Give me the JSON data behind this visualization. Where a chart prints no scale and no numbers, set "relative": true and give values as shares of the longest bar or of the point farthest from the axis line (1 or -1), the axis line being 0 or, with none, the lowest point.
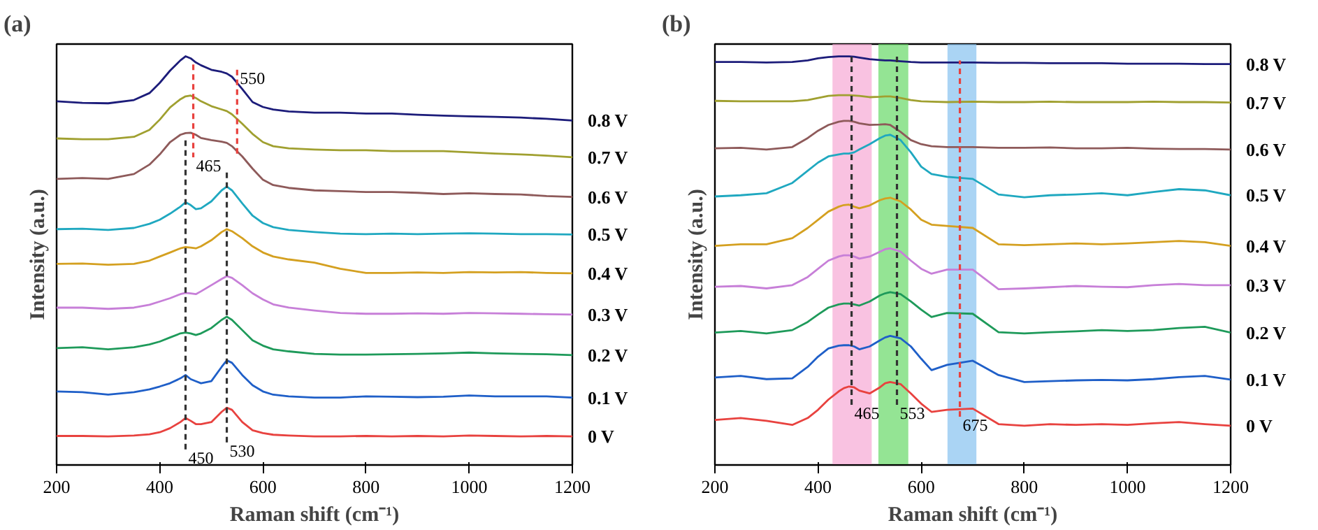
{
  "chart_data": [
    {
      "type": "line",
      "title": "(a)",
      "xlabel": "Raman shift (cm⁻¹)",
      "ylabel": "Intensity (a.u.)",
      "relative": true,
      "xlim": [
        200,
        1200
      ],
      "xticks": [
        200,
        400,
        600,
        800,
        1000,
        1200
      ],
      "grid": false,
      "x": [
        200,
        250,
        300,
        350,
        380,
        400,
        420,
        440,
        450,
        460,
        470,
        480,
        500,
        520,
        530,
        540,
        560,
        580,
        600,
        620,
        650,
        700,
        750,
        800,
        850,
        900,
        950,
        1000,
        1050,
        1100,
        1150,
        1200
      ],
      "series": [
        {
          "name": "0 V",
          "color": "#e8423f",
          "values": [
            0.071,
            0.071,
            0.07,
            0.072,
            0.075,
            0.08,
            0.09,
            0.105,
            0.115,
            0.108,
            0.1,
            0.1,
            0.105,
            0.13,
            0.14,
            0.135,
            0.105,
            0.085,
            0.078,
            0.074,
            0.072,
            0.07,
            0.07,
            0.071,
            0.07,
            0.071,
            0.07,
            0.072,
            0.071,
            0.07,
            0.071,
            0.07
          ]
        },
        {
          "name": "0.1 V",
          "color": "#1f5fc8",
          "values": [
            0.18,
            0.178,
            0.172,
            0.178,
            0.185,
            0.192,
            0.2,
            0.212,
            0.22,
            0.21,
            0.205,
            0.2,
            0.205,
            0.24,
            0.256,
            0.25,
            0.22,
            0.195,
            0.18,
            0.172,
            0.168,
            0.165,
            0.165,
            0.168,
            0.167,
            0.166,
            0.167,
            0.17,
            0.168,
            0.168,
            0.168,
            0.165
          ]
        },
        {
          "name": "0.2 V",
          "color": "#1e9a5a",
          "values": [
            0.286,
            0.288,
            0.283,
            0.288,
            0.295,
            0.302,
            0.312,
            0.322,
            0.324,
            0.322,
            0.318,
            0.322,
            0.335,
            0.355,
            0.363,
            0.355,
            0.33,
            0.305,
            0.292,
            0.283,
            0.278,
            0.272,
            0.27,
            0.27,
            0.271,
            0.272,
            0.273,
            0.275,
            0.273,
            0.272,
            0.271,
            0.269
          ]
        },
        {
          "name": "0.3 V",
          "color": "#c77fd8",
          "values": [
            0.385,
            0.385,
            0.382,
            0.385,
            0.392,
            0.4,
            0.408,
            0.418,
            0.421,
            0.42,
            0.418,
            0.425,
            0.44,
            0.455,
            0.462,
            0.458,
            0.44,
            0.42,
            0.405,
            0.393,
            0.385,
            0.378,
            0.372,
            0.37,
            0.37,
            0.371,
            0.37,
            0.372,
            0.371,
            0.37,
            0.369,
            0.368
          ]
        },
        {
          "name": "0.4 V",
          "color": "#d4a020",
          "values": [
            0.492,
            0.493,
            0.49,
            0.492,
            0.5,
            0.51,
            0.52,
            0.53,
            0.533,
            0.532,
            0.53,
            0.535,
            0.55,
            0.57,
            0.577,
            0.572,
            0.555,
            0.535,
            0.52,
            0.51,
            0.503,
            0.495,
            0.48,
            0.47,
            0.47,
            0.471,
            0.47,
            0.472,
            0.471,
            0.472,
            0.47,
            0.469
          ]
        },
        {
          "name": "0.5 V",
          "color": "#1fa8c0",
          "values": [
            0.577,
            0.578,
            0.575,
            0.58,
            0.59,
            0.6,
            0.615,
            0.632,
            0.643,
            0.636,
            0.626,
            0.628,
            0.645,
            0.672,
            0.681,
            0.672,
            0.64,
            0.61,
            0.592,
            0.582,
            0.575,
            0.57,
            0.566,
            0.565,
            0.566,
            0.565,
            0.566,
            0.567,
            0.566,
            0.565,
            0.565,
            0.564
          ]
        },
        {
          "name": "0.6 V",
          "color": "#8e5a5a",
          "values": [
            0.7,
            0.702,
            0.7,
            0.712,
            0.735,
            0.76,
            0.79,
            0.808,
            0.812,
            0.813,
            0.808,
            0.8,
            0.795,
            0.791,
            0.788,
            0.78,
            0.755,
            0.725,
            0.698,
            0.685,
            0.678,
            0.672,
            0.67,
            0.668,
            0.668,
            0.666,
            0.663,
            0.665,
            0.663,
            0.662,
            0.658,
            0.656
          ]
        },
        {
          "name": "0.7 V",
          "color": "#a0a030",
          "values": [
            0.799,
            0.797,
            0.797,
            0.803,
            0.82,
            0.845,
            0.875,
            0.895,
            0.902,
            0.904,
            0.898,
            0.89,
            0.878,
            0.87,
            0.866,
            0.858,
            0.835,
            0.81,
            0.79,
            0.78,
            0.775,
            0.772,
            0.77,
            0.77,
            0.768,
            0.768,
            0.768,
            0.765,
            0.762,
            0.76,
            0.757,
            0.753
          ]
        },
        {
          "name": "0.8 V",
          "color": "#1c1c7a",
          "values": [
            0.89,
            0.886,
            0.885,
            0.893,
            0.91,
            0.935,
            0.965,
            0.99,
            1.0,
            0.995,
            0.985,
            0.978,
            0.967,
            0.962,
            0.958,
            0.95,
            0.92,
            0.888,
            0.876,
            0.87,
            0.865,
            0.862,
            0.862,
            0.86,
            0.86,
            0.857,
            0.855,
            0.853,
            0.852,
            0.85,
            0.847,
            0.843
          ]
        },
        {
          "type": "line",
          "line_style": "dashed",
          "color": "#333333",
          "x": [
            450,
            450
          ],
          "values": [
            0.038,
            0.802
          ]
        },
        {
          "type": "line",
          "line_style": "dashed",
          "color": "#333333",
          "x": [
            530,
            530
          ],
          "values": [
            0.055,
            0.72
          ]
        },
        {
          "type": "line",
          "line_style": "dashed",
          "color": "#e8423f",
          "x": [
            465,
            465
          ],
          "values": [
            0.98,
            0.753
          ]
        },
        {
          "type": "line",
          "line_style": "dashed",
          "color": "#e8423f",
          "x": [
            550,
            550
          ],
          "values": [
            0.967,
            0.758
          ]
        }
      ],
      "annotations": [
        {
          "text": "450",
          "x": 450,
          "y": 0.038
        },
        {
          "text": "530",
          "x": 530,
          "y": 0.055
        },
        {
          "text": "465",
          "x": 465,
          "y": 0.753
        },
        {
          "text": "550",
          "x": 550,
          "y": 0.967
        }
      ]
    },
    {
      "type": "line",
      "title": "(b)",
      "xlabel": "Raman shift (cm⁻¹)",
      "ylabel": "Intensity (a.u.)",
      "relative": true,
      "xlim": [
        200,
        1200
      ],
      "xticks": [
        200,
        400,
        600,
        800,
        1000,
        1200
      ],
      "grid": false,
      "x": [
        200,
        250,
        300,
        350,
        380,
        400,
        420,
        440,
        450,
        460,
        470,
        480,
        500,
        520,
        530,
        540,
        560,
        580,
        600,
        620,
        650,
        700,
        750,
        800,
        850,
        900,
        950,
        1000,
        1050,
        1100,
        1150,
        1200
      ],
      "bands": [
        {
          "axis": "x",
          "from": 428,
          "to": 504,
          "color": "#f7a8d4"
        },
        {
          "axis": "x",
          "from": 517,
          "to": 575,
          "color": "#66d966"
        },
        {
          "axis": "x",
          "from": 651,
          "to": 707,
          "color": "#86c2f0"
        }
      ],
      "series": [
        {
          "name": "0 V",
          "color": "#e8423f",
          "values": [
            0.11,
            0.115,
            0.108,
            0.098,
            0.115,
            0.135,
            0.16,
            0.18,
            0.188,
            0.192,
            0.19,
            0.182,
            0.175,
            0.19,
            0.2,
            0.203,
            0.198,
            0.175,
            0.15,
            0.13,
            0.135,
            0.138,
            0.1,
            0.096,
            0.1,
            0.098,
            0.1,
            0.098,
            0.102,
            0.105,
            0.1,
            0.096
          ]
        },
        {
          "name": "0.1 V",
          "color": "#1f5fc8",
          "values": [
            0.214,
            0.218,
            0.21,
            0.212,
            0.24,
            0.265,
            0.285,
            0.292,
            0.293,
            0.293,
            0.29,
            0.283,
            0.29,
            0.305,
            0.312,
            0.316,
            0.31,
            0.29,
            0.26,
            0.232,
            0.245,
            0.255,
            0.22,
            0.203,
            0.205,
            0.207,
            0.208,
            0.207,
            0.21,
            0.215,
            0.218,
            0.209
          ]
        },
        {
          "name": "0.2 V",
          "color": "#1e9a5a",
          "values": [
            0.324,
            0.328,
            0.322,
            0.33,
            0.35,
            0.368,
            0.385,
            0.393,
            0.395,
            0.395,
            0.393,
            0.39,
            0.4,
            0.415,
            0.42,
            0.423,
            0.418,
            0.4,
            0.38,
            0.362,
            0.372,
            0.37,
            0.325,
            0.322,
            0.325,
            0.327,
            0.33,
            0.328,
            0.33,
            0.335,
            0.338,
            0.324
          ]
        },
        {
          "name": "0.3 V",
          "color": "#c77fd8",
          "values": [
            0.436,
            0.438,
            0.432,
            0.44,
            0.46,
            0.48,
            0.5,
            0.51,
            0.513,
            0.513,
            0.51,
            0.505,
            0.51,
            0.522,
            0.528,
            0.53,
            0.522,
            0.5,
            0.48,
            0.468,
            0.478,
            0.478,
            0.43,
            0.432,
            0.435,
            0.438,
            0.436,
            0.435,
            0.44,
            0.443,
            0.44,
            0.44
          ]
        },
        {
          "name": "0.4 V",
          "color": "#d4a020",
          "values": [
            0.536,
            0.54,
            0.54,
            0.555,
            0.58,
            0.6,
            0.62,
            0.632,
            0.636,
            0.637,
            0.632,
            0.628,
            0.635,
            0.648,
            0.652,
            0.654,
            0.645,
            0.625,
            0.6,
            0.588,
            0.585,
            0.58,
            0.54,
            0.538,
            0.54,
            0.542,
            0.54,
            0.542,
            0.545,
            0.548,
            0.545,
            0.536
          ]
        },
        {
          "name": "0.5 V",
          "color": "#1fa8c0",
          "values": [
            0.657,
            0.66,
            0.665,
            0.69,
            0.72,
            0.74,
            0.755,
            0.76,
            0.762,
            0.762,
            0.765,
            0.772,
            0.785,
            0.8,
            0.806,
            0.808,
            0.795,
            0.765,
            0.73,
            0.712,
            0.705,
            0.7,
            0.662,
            0.655,
            0.66,
            0.662,
            0.665,
            0.66,
            0.668,
            0.675,
            0.672,
            0.66
          ]
        },
        {
          "name": "0.6 V",
          "color": "#8e5a5a",
          "values": [
            0.775,
            0.776,
            0.772,
            0.778,
            0.8,
            0.818,
            0.832,
            0.84,
            0.842,
            0.842,
            0.84,
            0.836,
            0.832,
            0.833,
            0.834,
            0.832,
            0.815,
            0.795,
            0.785,
            0.78,
            0.778,
            0.778,
            0.776,
            0.776,
            0.777,
            0.775,
            0.775,
            0.776,
            0.774,
            0.773,
            0.773,
            0.772
          ]
        },
        {
          "name": "0.7 V",
          "color": "#a0a030",
          "values": [
            0.891,
            0.89,
            0.89,
            0.89,
            0.893,
            0.898,
            0.903,
            0.905,
            0.905,
            0.905,
            0.904,
            0.903,
            0.9,
            0.901,
            0.902,
            0.902,
            0.898,
            0.893,
            0.89,
            0.889,
            0.888,
            0.889,
            0.888,
            0.888,
            0.889,
            0.888,
            0.888,
            0.888,
            0.889,
            0.888,
            0.888,
            0.887
          ]
        },
        {
          "name": "0.8 V",
          "color": "#1c1c7a",
          "values": [
            0.986,
            0.986,
            0.985,
            0.986,
            0.99,
            0.995,
            0.998,
            1.0,
            1.0,
            1.0,
            0.999,
            0.997,
            0.993,
            0.991,
            0.99,
            0.99,
            0.988,
            0.986,
            0.985,
            0.985,
            0.985,
            0.985,
            0.984,
            0.984,
            0.983,
            0.983,
            0.983,
            0.982,
            0.982,
            0.982,
            0.981,
            0.981
          ]
        },
        {
          "type": "line",
          "line_style": "dashed",
          "color": "#333333",
          "x": [
            465,
            465
          ],
          "values": [
            0.147,
            1.0
          ]
        },
        {
          "type": "line",
          "line_style": "dashed",
          "color": "#333333",
          "x": [
            553,
            553
          ],
          "values": [
            0.147,
            1.0
          ]
        },
        {
          "type": "line",
          "line_style": "dashed",
          "color": "#e8423f",
          "x": [
            675,
            675
          ],
          "values": [
            0.118,
            0.99
          ]
        }
      ],
      "annotations": [
        {
          "text": "465",
          "x": 465,
          "y": 0.147
        },
        {
          "text": "553",
          "x": 553,
          "y": 0.147
        },
        {
          "text": "675",
          "x": 675,
          "y": 0.118
        }
      ]
    }
  ]
}
